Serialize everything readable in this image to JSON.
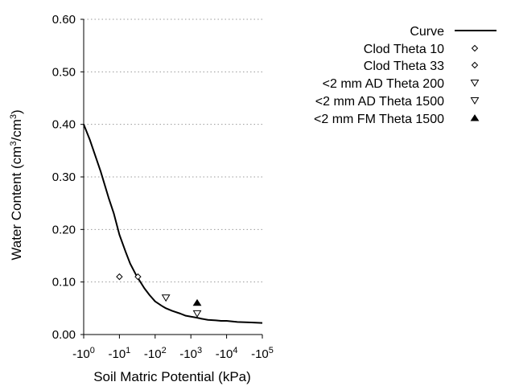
{
  "chart_data": {
    "type": "scatter",
    "xlabel": "Soil Matric Potential (kPa)",
    "ylabel_main": "Water Content (cm",
    "ylabel_sup1": "3",
    "ylabel_mid": "/cm",
    "ylabel_sup2": "3",
    "ylabel_end": ")",
    "x_scale": "log (negative kPa)",
    "xlim": [
      1,
      100000
    ],
    "ylim": [
      0,
      0.6
    ],
    "grid": "horizontal dotted",
    "legend_position": "top-right, outside plot",
    "yticks": [
      "0.00",
      "0.10",
      "0.20",
      "0.30",
      "0.40",
      "0.50",
      "0.60"
    ],
    "xticks": [
      {
        "base": "-10",
        "exp": "0"
      },
      {
        "base": "-10",
        "exp": "1"
      },
      {
        "base": "-10",
        "exp": "2"
      },
      {
        "base": "-10",
        "exp": "3"
      },
      {
        "base": "-10",
        "exp": "4"
      },
      {
        "base": "-10",
        "exp": "5"
      }
    ],
    "series": [
      {
        "name": "Curve",
        "marker": "line",
        "x": [
          1,
          1.5,
          2,
          3,
          5,
          7,
          10,
          15,
          20,
          30,
          50,
          70,
          100,
          150,
          200,
          300,
          500,
          700,
          1000,
          1500,
          2000,
          3000,
          5000,
          7000,
          10000,
          20000,
          50000,
          100000
        ],
        "y": [
          0.4,
          0.37,
          0.345,
          0.31,
          0.26,
          0.23,
          0.19,
          0.157,
          0.135,
          0.112,
          0.088,
          0.075,
          0.063,
          0.055,
          0.05,
          0.045,
          0.04,
          0.036,
          0.034,
          0.032,
          0.03,
          0.028,
          0.027,
          0.026,
          0.026,
          0.024,
          0.023,
          0.022
        ]
      },
      {
        "name": "Clod Theta 10",
        "marker": "diamond",
        "x": [
          10
        ],
        "y": [
          0.11
        ]
      },
      {
        "name": "Clod Theta 33",
        "marker": "diamond",
        "x": [
          33
        ],
        "y": [
          0.11
        ]
      },
      {
        "name": "<2 mm AD Theta 200",
        "marker": "triangle-down",
        "x": [
          200
        ],
        "y": [
          0.07
        ]
      },
      {
        "name": "<2 mm AD Theta 1500",
        "marker": "triangle-down",
        "x": [
          1500
        ],
        "y": [
          0.04
        ]
      },
      {
        "name": "<2 mm FM Theta 1500",
        "marker": "triangle-up-filled",
        "x": [
          1500
        ],
        "y": [
          0.06
        ]
      }
    ],
    "colors": {
      "line": "#000000",
      "grid": "#9a9a9a",
      "marker_fill": "#000000"
    }
  }
}
